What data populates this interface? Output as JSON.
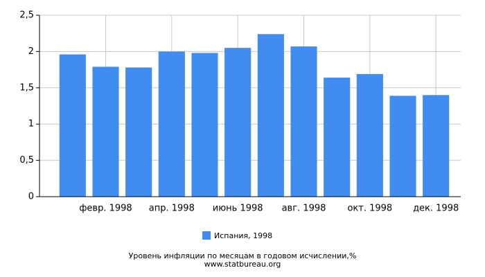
{
  "chart_data": {
    "type": "bar",
    "title": "Уровень инфляции по месяцам в годовом исчислении,%",
    "source": "www.statbureau.org",
    "categories": [
      null,
      "февр. 1998",
      null,
      "апр. 1998",
      null,
      "июнь 1998",
      null,
      "авг. 1998",
      null,
      "окт. 1998",
      null,
      "дек. 1998"
    ],
    "series": [
      {
        "name": "Испания, 1998",
        "color": "#418cf0",
        "values": [
          1.96,
          1.79,
          1.78,
          2.0,
          1.98,
          2.05,
          2.24,
          2.07,
          1.64,
          1.69,
          1.39,
          1.4
        ]
      }
    ],
    "ylim": [
      0,
      2.5
    ],
    "yticks": [
      0,
      {
        "value": 0.5,
        "label": "0,5"
      },
      1,
      {
        "value": 1.5,
        "label": "1,5"
      },
      2,
      {
        "value": 2.5,
        "label": "2,5"
      }
    ],
    "grid": true
  }
}
